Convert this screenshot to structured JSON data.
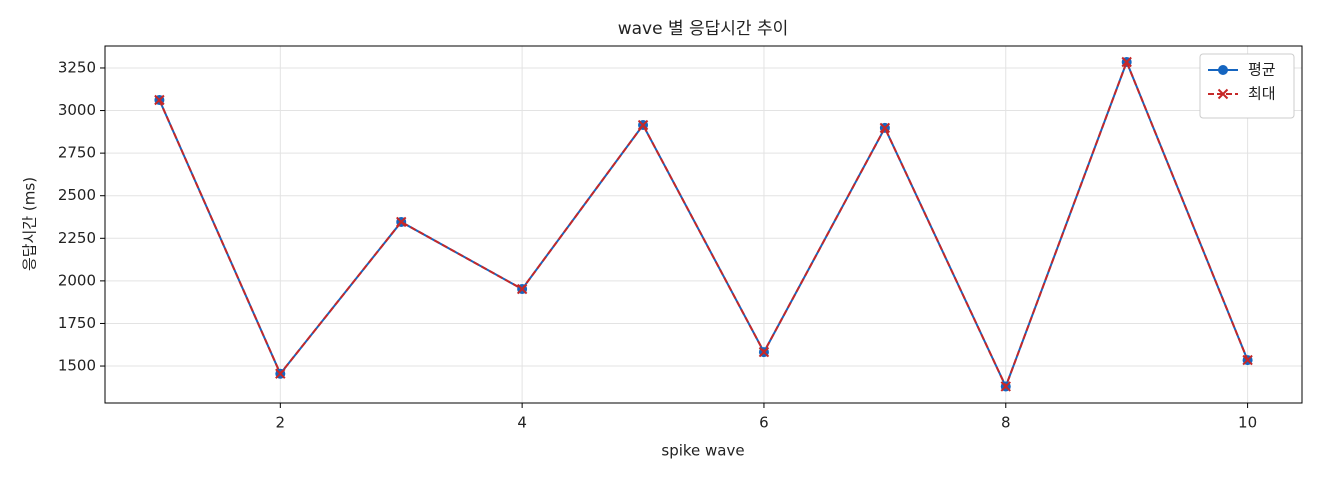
{
  "chart_data": {
    "type": "line",
    "title": "wave 별 응답시간 추이",
    "x_label": "spike wave",
    "y_label": "응답시간 (ms)",
    "x": [
      1,
      2,
      3,
      4,
      5,
      6,
      7,
      8,
      9,
      10
    ],
    "series": [
      {
        "name": "평균",
        "color": "#1565c0",
        "marker": "o",
        "linestyle": "solid",
        "values": [
          3062,
          1455,
          2346,
          1952,
          2915,
          1582,
          2898,
          1380,
          3285,
          1535
        ]
      },
      {
        "name": "최대",
        "color": "#c62828",
        "marker": "x",
        "linestyle": "dashed",
        "values": [
          3062,
          1455,
          2346,
          1952,
          2915,
          1582,
          2898,
          1380,
          3285,
          1535
        ]
      }
    ],
    "xlim": [
      0.55,
      10.45
    ],
    "ylim": [
      1283,
      3379
    ],
    "xticks": [
      2,
      4,
      6,
      8,
      10
    ],
    "yticks": [
      1500,
      1750,
      2000,
      2250,
      2500,
      2750,
      3000,
      3250
    ],
    "grid": true,
    "legend": "upper right"
  }
}
